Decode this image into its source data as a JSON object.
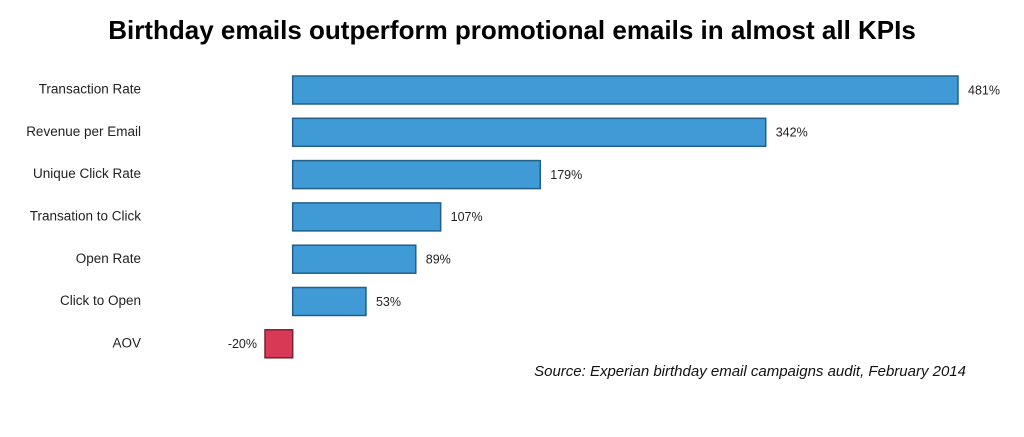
{
  "chart_data": {
    "type": "bar",
    "orientation": "horizontal",
    "title": "Birthday emails outperform promotional emails in almost all KPIs",
    "categories": [
      "Transaction Rate",
      "Revenue per Email",
      "Unique Click Rate",
      "Transation to Click",
      "Open Rate",
      "Click to Open",
      "AOV"
    ],
    "values": [
      481,
      342,
      179,
      107,
      89,
      53,
      -20
    ],
    "value_labels": [
      "481%",
      "342%",
      "179%",
      "107%",
      "89%",
      "53%",
      "-20%"
    ],
    "colors": [
      "#3f9ad5",
      "#3f9ad5",
      "#3f9ad5",
      "#3f9ad5",
      "#3f9ad5",
      "#3f9ad5",
      "#d83a55"
    ],
    "source": "Source: Experian birthday email campaigns audit, February 2014"
  }
}
